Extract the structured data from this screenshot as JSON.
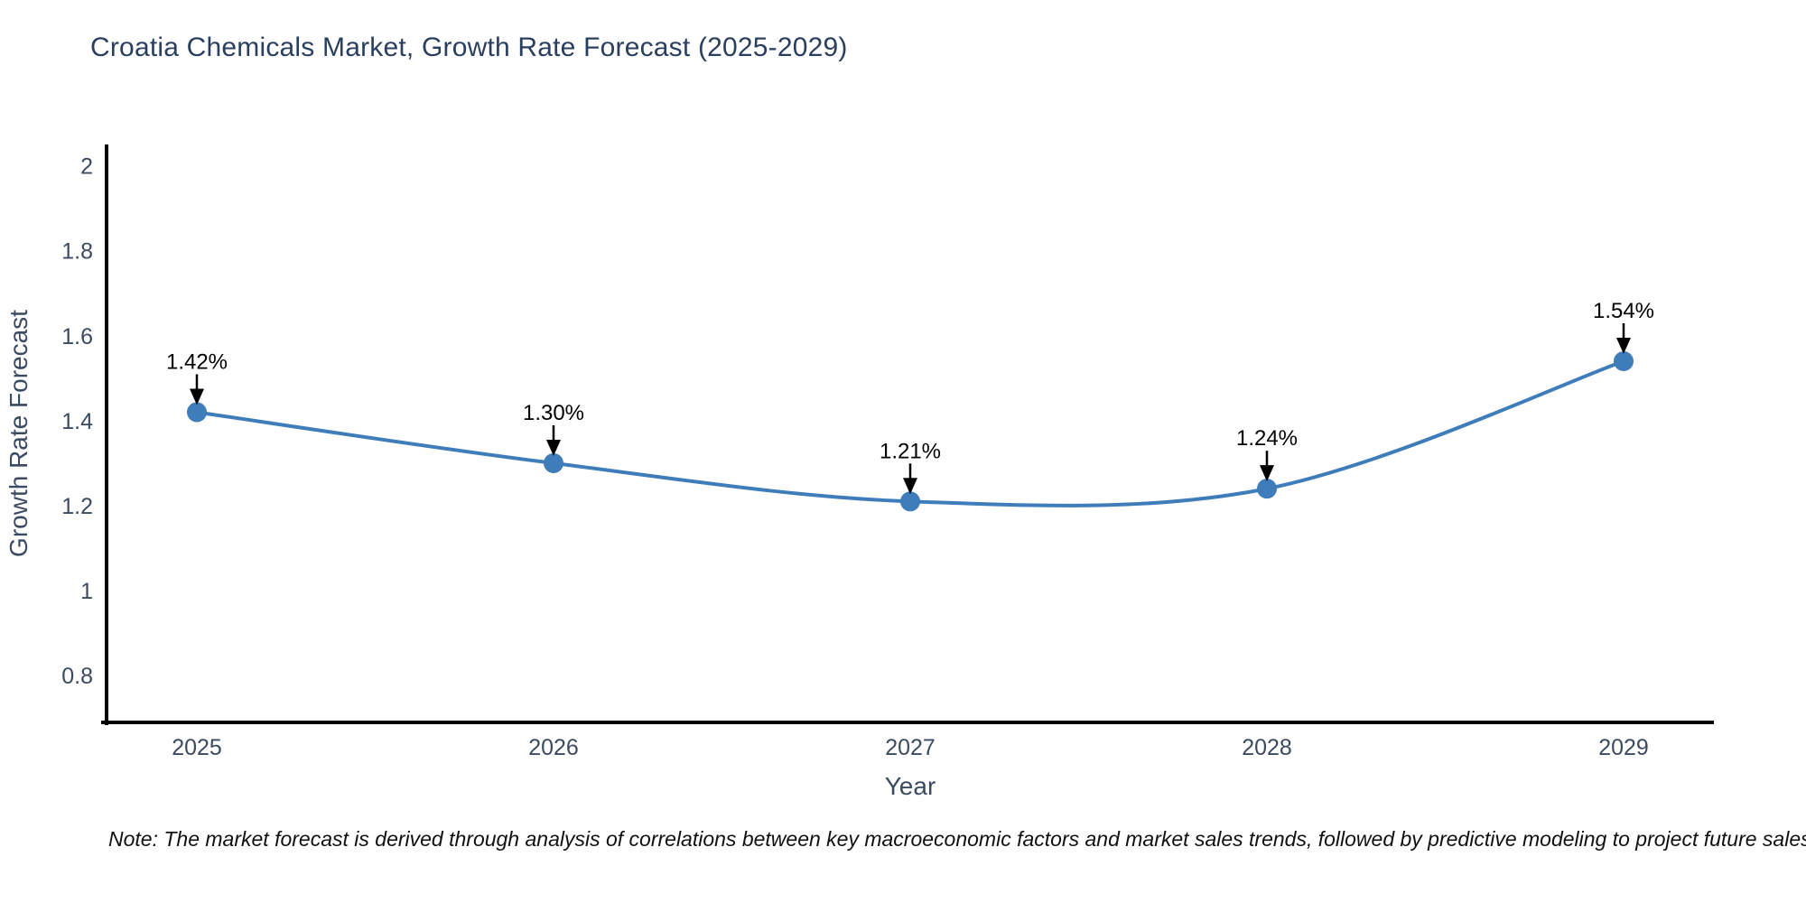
{
  "page": {
    "note": "Note: The market forecast is derived through analysis of correlations between key macroeconomic factors and market sales trends, followed by predictive modeling to project future sales"
  },
  "chart_data": {
    "type": "line",
    "title": "Croatia Chemicals Market, Growth Rate Forecast (2025-2029)",
    "x": [
      "2025",
      "2026",
      "2027",
      "2028",
      "2029"
    ],
    "series": [
      {
        "name": "Growth Rate Forecast",
        "values": [
          1.42,
          1.3,
          1.21,
          1.24,
          1.54
        ]
      }
    ],
    "point_labels": [
      "1.42%",
      "1.30%",
      "1.21%",
      "1.24%",
      "1.54%"
    ],
    "xlabel": "Year",
    "ylabel": "Growth Rate Forecast",
    "ylim": [
      0.69,
      2.05
    ],
    "yticks": [
      0.8,
      1.0,
      1.2,
      1.4,
      1.6,
      1.8,
      2.0
    ],
    "ytick_labels": [
      "0.8",
      "1",
      "1.2",
      "1.4",
      "1.6",
      "1.8",
      "2"
    ],
    "grid": false,
    "legend": "none",
    "line_shape": "spline",
    "colors": {
      "line": "#3e7cba",
      "marker": "#3e7cba",
      "annotation": "#000000",
      "axis": "#000000",
      "tick_text": "#3c4a61",
      "title_text": "#2a3f5f",
      "note_text": "#111111",
      "background": "#ffffff"
    }
  }
}
